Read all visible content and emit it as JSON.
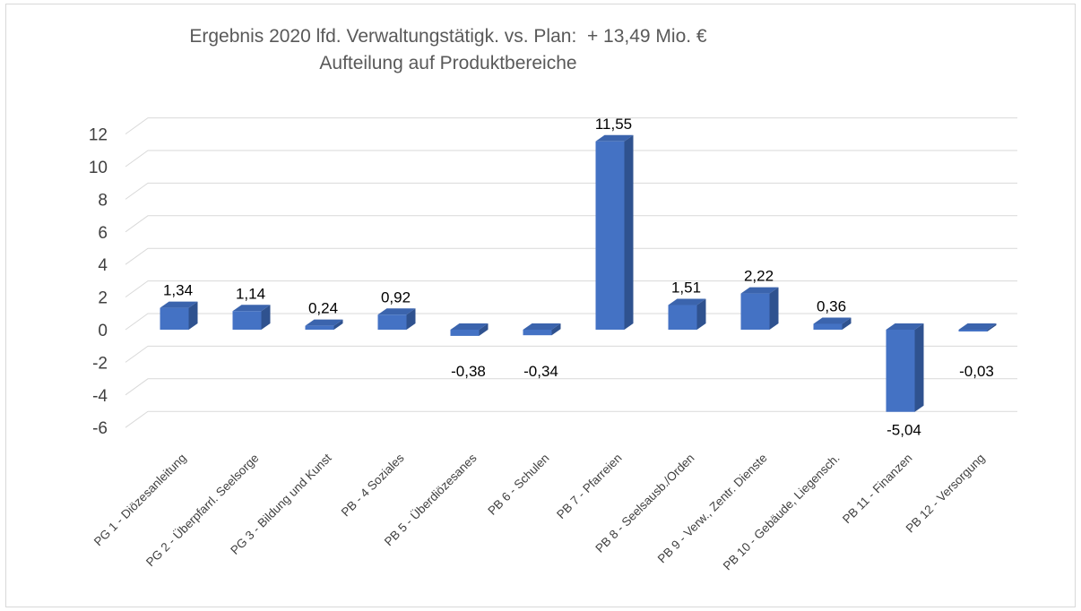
{
  "chart_data": {
    "type": "bar",
    "title": "Ergebnis 2020 lfd. Verwaltungstätigk. vs. Plan:  + 13,49 Mio. €",
    "subtitle": "Aufteilung auf Produktbereiche",
    "categories": [
      "PG 1 - Diözesanleitung",
      "PG 2 - Überpfarrl. Seelsorge",
      "PG 3 - Bildung und Kunst",
      "PB - 4 Soziales",
      "PB 5 - Überdiözesanes",
      "PB 6 - Schulen",
      "PB 7 - Pfarreien",
      "PB 8 - Seelsausb./Orden",
      "PB 9 - Verw., Zentr. Dienste",
      "PB 10 - Gebäude, Liegensch.",
      "PB 11 - Finanzen",
      "PB 12 - Versorgung"
    ],
    "values": [
      1.34,
      1.14,
      0.24,
      0.92,
      -0.38,
      -0.34,
      11.55,
      1.51,
      2.22,
      0.36,
      -5.04,
      -0.03
    ],
    "data_labels": [
      "1,34",
      "1,14",
      "0,24",
      "0,92",
      "-0,38",
      "-0,34",
      "11,55",
      "1,51",
      "2,22",
      "0,36",
      "-5,04",
      "-0,03"
    ],
    "yticks": [
      -6,
      -4,
      -2,
      0,
      2,
      4,
      6,
      8,
      10,
      12
    ],
    "ylim": [
      -6,
      12
    ],
    "grid": true,
    "colors": {
      "front": "#4472c4",
      "side": "#2f528f",
      "top": "#3b64ad",
      "grid": "#d9d9d9"
    }
  }
}
